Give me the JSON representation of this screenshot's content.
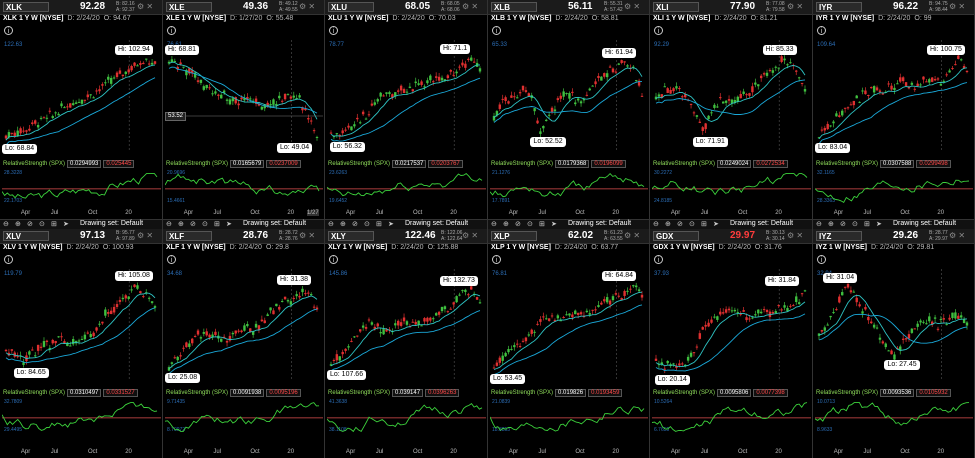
{
  "common": {
    "rs_label": "RelativeStrength (SPX)",
    "drawing_set": "Drawing set: Default",
    "x_ticks": [
      "Apr",
      "Jul",
      "Oct",
      "20"
    ]
  },
  "colors": {
    "up": "#3fbf3f",
    "down": "#e03030",
    "ma1": "#2ec4c4",
    "ma2": "#1aa8d8",
    "rs": "#3cd23c",
    "rsref": "#e05050"
  },
  "panels": [
    {
      "symbol": "XLK",
      "price": "92.28",
      "price_red": false,
      "bid": "B: 82.16",
      "ask": "A: 92.37",
      "sub": "XLK 1 Y W [NYSE]",
      "date": "D: 2/24/20",
      "open": "O: 94.67",
      "ytop": "122.63",
      "hi": "Hi: 102.94",
      "lo": "Lo: 68.84",
      "rs1": "0.0294993",
      "rs2": "0.025445",
      "rs_ytop": "28.3228",
      "rs_ybot": "22.1703",
      "trend": [
        0.05,
        0.1,
        0.12,
        0.2,
        0.25,
        0.3,
        0.38,
        0.45,
        0.5,
        0.55,
        0.62,
        0.7,
        0.78,
        0.85,
        0.92,
        1.0,
        0.9
      ]
    },
    {
      "symbol": "XLE",
      "price": "49.36",
      "price_red": false,
      "bid": "B: 49.12",
      "ask": "A: 49.55",
      "sub": "XLE 1 Y W [NYSE]",
      "date": "D: 1/27/20",
      "open": "O: 55.48",
      "ytop": "76.61",
      "hi": "Hi: 68.81",
      "lo": "Lo: 49.04",
      "hl": "53.52",
      "rs1": "0.0165679",
      "rs2": "0.0237009",
      "rs_ytop": "20.9696",
      "rs_ybot": "15.4661",
      "trend": [
        0.95,
        0.9,
        0.85,
        0.75,
        0.65,
        0.6,
        0.55,
        0.45,
        0.5,
        0.5,
        0.4,
        0.45,
        0.5,
        0.55,
        0.5,
        0.3,
        0.05
      ],
      "xlast": "1/27"
    },
    {
      "symbol": "XLU",
      "price": "68.05",
      "price_red": false,
      "bid": "B: 68.05",
      "ask": "A: 68.06",
      "sub": "XLU 1 Y W [NYSE]",
      "date": "D: 2/24/20",
      "open": "O: 70.03",
      "ytop": "78.77",
      "hi": "Hi: 71.1",
      "lo": "Lo: 56.32",
      "rs1": "0.0217537",
      "rs2": "0.0203767",
      "rs_ytop": "23.6263",
      "rs_ybot": "19.6452",
      "trend": [
        0.05,
        0.08,
        0.15,
        0.25,
        0.35,
        0.5,
        0.55,
        0.6,
        0.62,
        0.65,
        0.7,
        0.72,
        0.75,
        0.8,
        0.9,
        1.0,
        0.85
      ]
    },
    {
      "symbol": "XLB",
      "price": "56.11",
      "price_red": false,
      "bid": "B: 55.31",
      "ask": "A: 57.42",
      "sub": "XLB 1 Y W [NYSE]",
      "date": "D: 2/24/20",
      "open": "O: 58.81",
      "ytop": "65.33",
      "hi": "Hi: 61.94",
      "lo": "Lo: 52.52",
      "rs1": "0.0179368",
      "rs2": "0.0196099",
      "rs_ytop": "21.1276",
      "rs_ybot": "17.7891",
      "trend": [
        0.3,
        0.45,
        0.5,
        0.6,
        0.55,
        0.1,
        0.3,
        0.5,
        0.6,
        0.45,
        0.55,
        0.7,
        0.8,
        0.85,
        0.95,
        0.85,
        0.55
      ]
    },
    {
      "symbol": "XLI",
      "price": "77.90",
      "price_red": false,
      "bid": "B: 77.08",
      "ask": "A: 79.58",
      "sub": "XLI 1 Y W [NYSE]",
      "date": "D: 2/24/20",
      "open": "O: 81.21",
      "ytop": "92.29",
      "hi": "Hi: 85.33",
      "lo": "Lo: 71.91",
      "rs1": "0.0249024",
      "rs2": "0.0272534",
      "rs_ytop": "30.2272",
      "rs_ybot": "24.8185",
      "trend": [
        0.5,
        0.6,
        0.65,
        0.55,
        0.4,
        0.1,
        0.35,
        0.5,
        0.45,
        0.55,
        0.6,
        0.7,
        0.8,
        0.9,
        1.0,
        0.9,
        0.6
      ]
    },
    {
      "symbol": "IYR",
      "price": "96.22",
      "price_red": false,
      "bid": "B: 94.75",
      "ask": "A: 98.44",
      "sub": "IYR 1 Y W [NYSE]",
      "date": "D: 2/24/20",
      "open": "O: 99",
      "ytop": "109.64",
      "hi": "Hi: 100.75",
      "lo": "Lo: 83.04",
      "rs1": "0.0307588",
      "rs2": "0.0299498",
      "rs_ytop": "32.1165",
      "rs_ybot": "28.3363",
      "trend": [
        0.05,
        0.15,
        0.3,
        0.4,
        0.5,
        0.55,
        0.6,
        0.6,
        0.65,
        0.7,
        0.65,
        0.7,
        0.75,
        0.7,
        0.8,
        1.0,
        0.85
      ]
    },
    {
      "symbol": "XLV",
      "price": "97.13",
      "price_red": false,
      "bid": "B: 95.77",
      "ask": "A: 97.89",
      "sub": "XLV 1 Y W [NYSE]",
      "date": "D: 2/24/20",
      "open": "O: 100.93",
      "ytop": "119.79",
      "hi": "Hi: 105.08",
      "lo": "Lo: 84.65",
      "rs1": "0.0310497",
      "rs2": "0.0331527",
      "rs_ytop": "32.7809",
      "rs_ybot": "29.4495",
      "trend": [
        0.2,
        0.15,
        0.1,
        0.2,
        0.3,
        0.3,
        0.35,
        0.3,
        0.35,
        0.4,
        0.55,
        0.7,
        0.8,
        0.9,
        1.0,
        0.9,
        0.75
      ]
    },
    {
      "symbol": "XLF",
      "price": "28.76",
      "price_red": false,
      "bid": "B: 28.72",
      "ask": "A: 28.76",
      "sub": "XLF 1 Y W [NYSE]",
      "date": "D: 2/24/20",
      "open": "O: 29.8",
      "ytop": "34.68",
      "hi": "Hi: 31.38",
      "lo": "Lo: 25.08",
      "rs1": "0.0091938",
      "rs2": "0.0095196",
      "rs_ytop": "9.71435",
      "rs_ybot": "8.70972",
      "trend": [
        0.05,
        0.15,
        0.3,
        0.4,
        0.45,
        0.4,
        0.35,
        0.45,
        0.5,
        0.45,
        0.55,
        0.7,
        0.8,
        0.85,
        0.9,
        1.0,
        0.75
      ]
    },
    {
      "symbol": "XLY",
      "price": "122.46",
      "price_red": false,
      "bid": "B: 122.06",
      "ask": "A: 122.64",
      "sub": "XLY 1 Y W [NYSE]",
      "date": "D: 2/24/20",
      "open": "O: 125.88",
      "ytop": "145.86",
      "hi": "Hi: 132.73",
      "lo": "Lo: 107.66",
      "rs1": "0.039147",
      "rs2": "0.0396263",
      "rs_ytop": "41.3638",
      "rs_ybot": "38.1108",
      "trend": [
        0.05,
        0.15,
        0.3,
        0.45,
        0.55,
        0.5,
        0.45,
        0.55,
        0.6,
        0.55,
        0.6,
        0.65,
        0.7,
        0.8,
        0.9,
        1.0,
        0.8
      ]
    },
    {
      "symbol": "XLP",
      "price": "62.02",
      "price_red": false,
      "bid": "B: 61.23",
      "ask": "A: 63.55",
      "sub": "XLP 1 Y W [NYSE]",
      "date": "D: 2/24/20",
      "open": "O: 63.77",
      "ytop": "76.81",
      "hi": "Hi: 64.84",
      "lo": "Lo: 53.45",
      "rs1": "0.019826",
      "rs2": "0.0193459",
      "rs_ytop": "21.0839",
      "rs_ybot": "18.8853",
      "trend": [
        0.05,
        0.15,
        0.25,
        0.35,
        0.45,
        0.55,
        0.6,
        0.62,
        0.65,
        0.68,
        0.7,
        0.75,
        0.8,
        0.85,
        0.9,
        1.0,
        0.9
      ]
    },
    {
      "symbol": "GDX",
      "price": "29.97",
      "price_red": true,
      "bid": "B: 30.13",
      "ask": "A: 30.14",
      "sub": "GDX 1 Y W [NYSE]",
      "date": "D: 2/24/20",
      "open": "O: 31.76",
      "ytop": "37.93",
      "hi": "Hi: 31.84",
      "lo": "Lo: 20.14",
      "rs1": "0.0095806",
      "rs2": "0.0077398",
      "rs_ytop": "10.5264",
      "rs_ybot": "6.7655",
      "trend": [
        0.1,
        0.05,
        0.05,
        0.08,
        0.2,
        0.45,
        0.6,
        0.7,
        0.75,
        0.7,
        0.65,
        0.68,
        0.7,
        0.72,
        0.75,
        0.8,
        0.95
      ]
    },
    {
      "symbol": "IYZ",
      "price": "29.26",
      "price_red": false,
      "bid": "B: 28.77",
      "ask": "A: 29.97",
      "sub": "IYZ 1 W [NYSE]",
      "date": "D: 2/24/20",
      "open": "O: 29.81",
      "ytop": "32.94",
      "hi": "Hi: 31.04",
      "lo": "Lo: 27.45",
      "rs1": "0.0093536",
      "rs2": "0.0105932",
      "rs_ytop": "10.0713",
      "rs_ybot": "8.9633",
      "trend": [
        0.4,
        0.6,
        0.8,
        1.0,
        0.85,
        0.7,
        0.5,
        0.3,
        0.15,
        0.3,
        0.5,
        0.55,
        0.6,
        0.55,
        0.6,
        0.65,
        0.6
      ]
    }
  ]
}
